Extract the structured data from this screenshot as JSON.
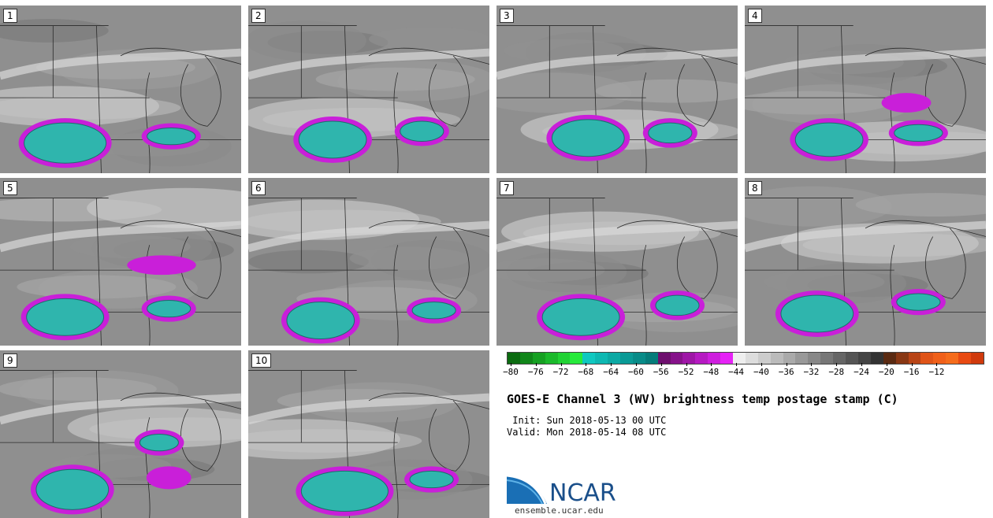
{
  "panels": [
    {
      "label": "1"
    },
    {
      "label": "2"
    },
    {
      "label": "3"
    },
    {
      "label": "4"
    },
    {
      "label": "5"
    },
    {
      "label": "6"
    },
    {
      "label": "7"
    },
    {
      "label": "8"
    },
    {
      "label": "9"
    },
    {
      "label": "10"
    }
  ],
  "colorbar": {
    "colors": [
      "#0b6b10",
      "#11861a",
      "#16a022",
      "#1bb92b",
      "#21d234",
      "#27ea3c",
      "#10c8c0",
      "#0eb8b2",
      "#0ca9a4",
      "#0a9a96",
      "#088b88",
      "#067c7a",
      "#6e0f6e",
      "#86128a",
      "#9e16a6",
      "#b61ac2",
      "#ce1ede",
      "#e622f6",
      "#eeeeee",
      "#dddddd",
      "#cccccc",
      "#bbbbbb",
      "#aaaaaa",
      "#999999",
      "#888888",
      "#777777",
      "#666666",
      "#555555",
      "#444444",
      "#333333",
      "#5a2a12",
      "#883714",
      "#b84416",
      "#e05418",
      "#f0601a",
      "#f56c1c",
      "#e84a12",
      "#d03a0c"
    ],
    "tick_labels": [
      "−80",
      "−76",
      "−72",
      "−68",
      "−64",
      "−60",
      "−56",
      "−52",
      "−48",
      "−44",
      "−40",
      "−36",
      "−32",
      "−28",
      "−24",
      "−20",
      "−16",
      "−12"
    ]
  },
  "title": "GOES-E Channel 3 (WV) brightness temp postage stamp (C)",
  "init": " Init: Sun 2018-05-13 00 UTC",
  "valid": "Valid: Mon 2018-05-14 08 UTC",
  "logo": {
    "name": "NCAR",
    "url": "ensemble.ucar.edu",
    "colors": {
      "blue": "#1a4f8a",
      "light": "#4aa3df"
    }
  }
}
